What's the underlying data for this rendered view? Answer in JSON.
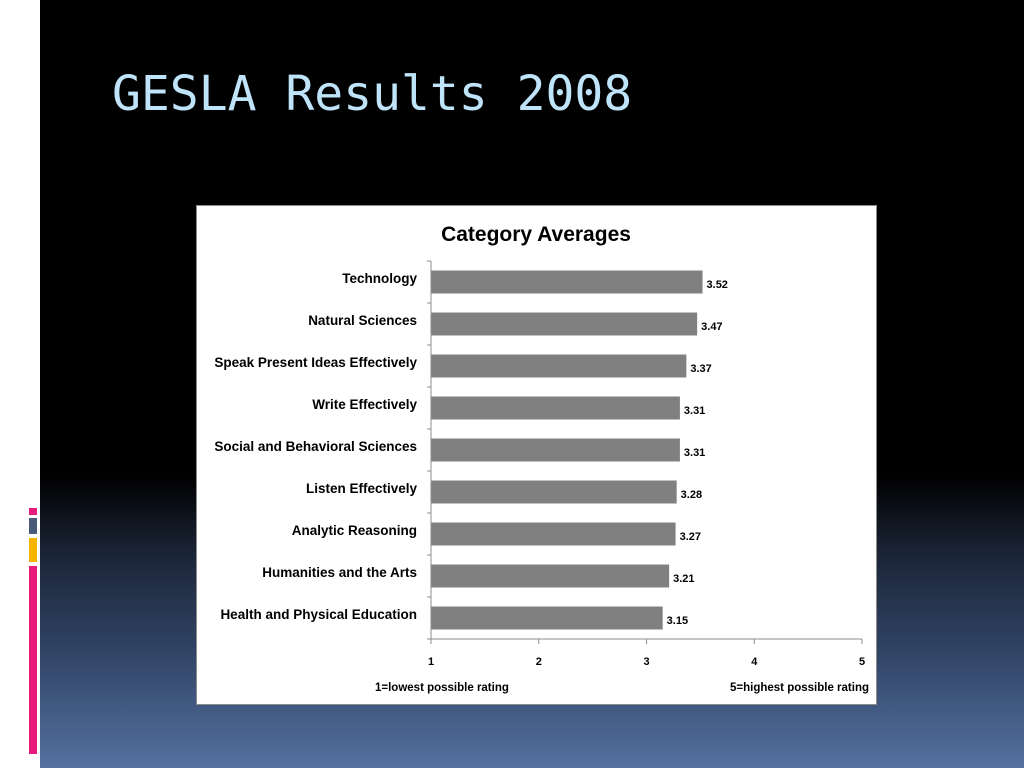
{
  "slide": {
    "title": "GESLA Results 2008"
  },
  "colors": {
    "title": "#bfe3f8",
    "bar": "#808080",
    "deco": [
      "#e8197d",
      "#4a5a78",
      "#f5b400",
      "#e8197d"
    ]
  },
  "chart_data": {
    "type": "bar",
    "orientation": "horizontal",
    "title": "Category Averages",
    "categories": [
      "Technology",
      "Natural Sciences",
      "Speak Present Ideas Effectively",
      "Write Effectively",
      "Social and Behavioral Sciences",
      "Listen Effectively",
      "Analytic Reasoning",
      "Humanities and the Arts",
      "Health and Physical Education"
    ],
    "values": [
      3.52,
      3.47,
      3.37,
      3.31,
      3.31,
      3.28,
      3.27,
      3.21,
      3.15
    ],
    "value_labels": [
      "3.52",
      "3.47",
      "3.37",
      "3.31",
      "3.31",
      "3.28",
      "3.27",
      "3.21",
      "3.15"
    ],
    "xlim": [
      1,
      5
    ],
    "xticks": [
      "1",
      "2",
      "3",
      "4",
      "5"
    ],
    "notes": {
      "left": "1=lowest possible rating",
      "right": "5=highest possible rating"
    },
    "grid": false,
    "legend": "none"
  }
}
